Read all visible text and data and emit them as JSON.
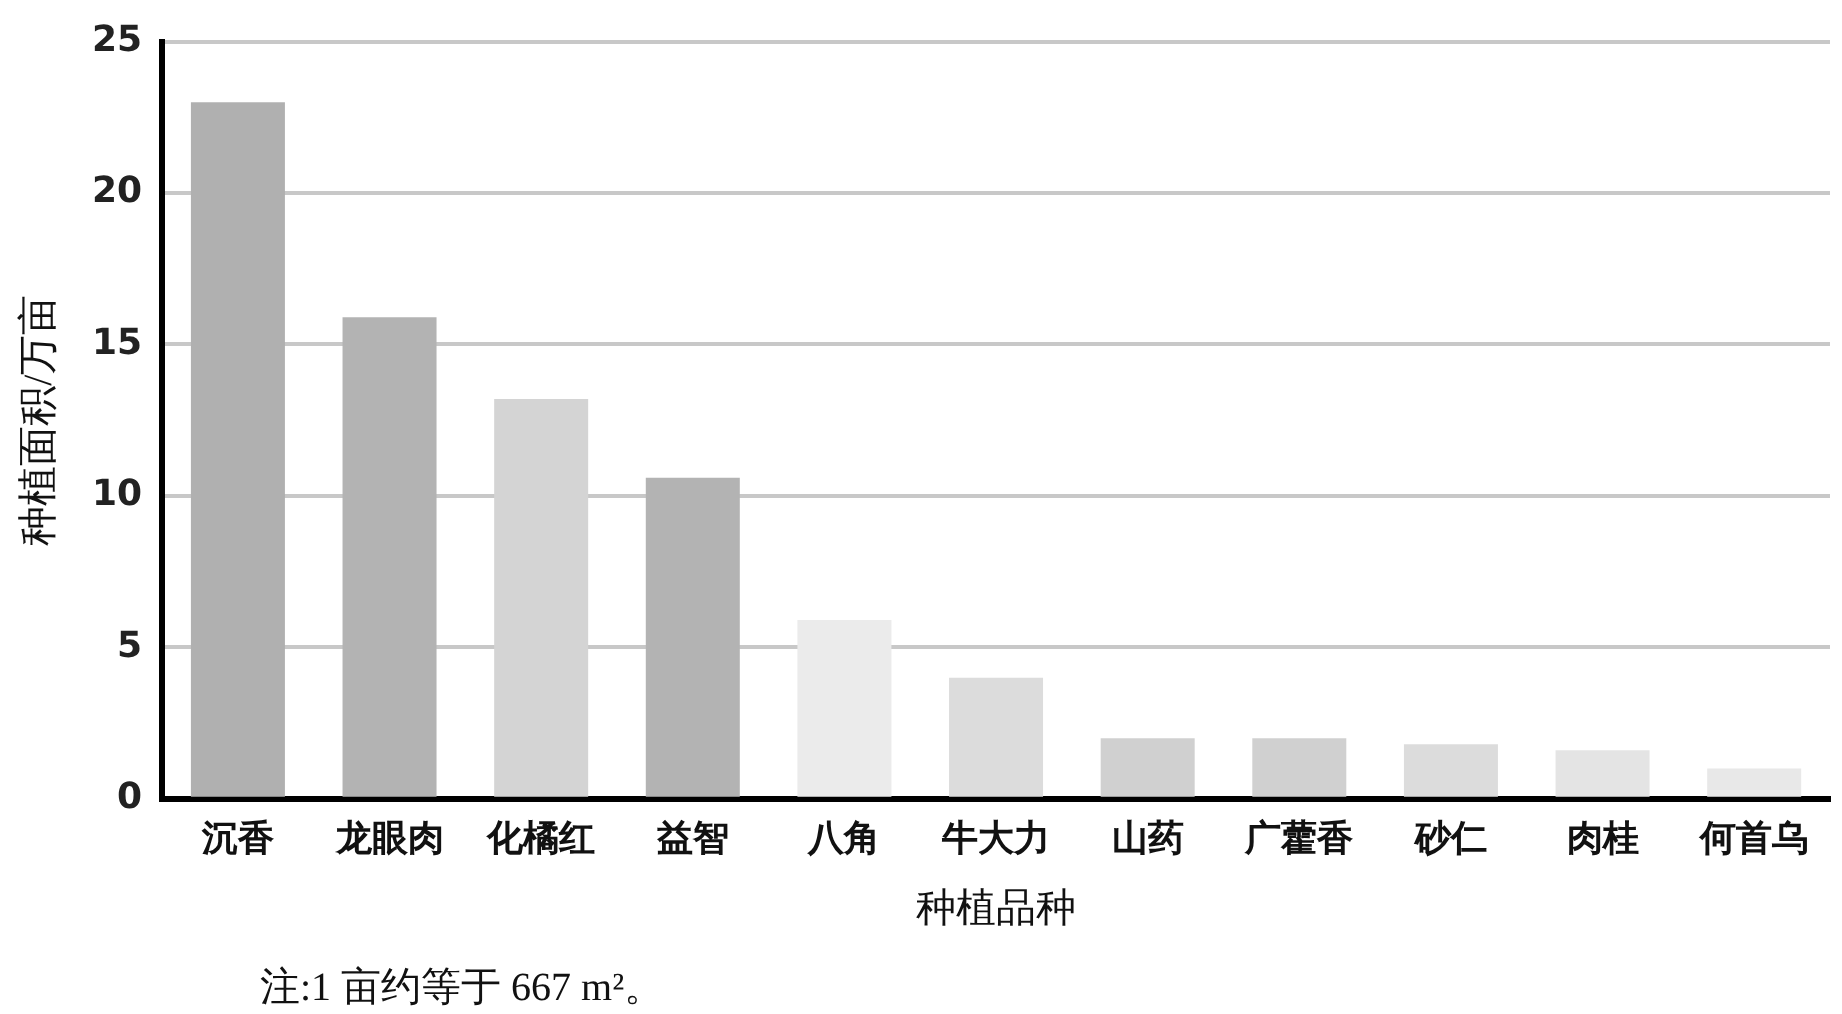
{
  "chart_data": {
    "type": "bar",
    "categories": [
      "沉香",
      "龙眼肉",
      "化橘红",
      "益智",
      "八角",
      "牛大力",
      "山药",
      "广藿香",
      "砂仁",
      "肉桂",
      "何首乌"
    ],
    "values": [
      23.0,
      15.9,
      13.2,
      10.6,
      5.9,
      4.0,
      2.0,
      2.0,
      1.8,
      1.6,
      1.0
    ],
    "colors": [
      "#b0b0b0",
      "#b3b3b3",
      "#d4d4d4",
      "#b3b3b3",
      "#ebebeb",
      "#dcdcdc",
      "#d0d0d0",
      "#d0d0d0",
      "#dcdcdc",
      "#e4e4e4",
      "#e8e8e8"
    ],
    "xlabel": "种植品种",
    "ylabel": "种植面积/万亩",
    "ylim": [
      0,
      25
    ],
    "yticks": [
      0,
      5,
      10,
      15,
      20,
      25
    ],
    "grid": "y",
    "legend": false,
    "annotations": [
      "注:1 亩约等于 667 m²。"
    ]
  }
}
